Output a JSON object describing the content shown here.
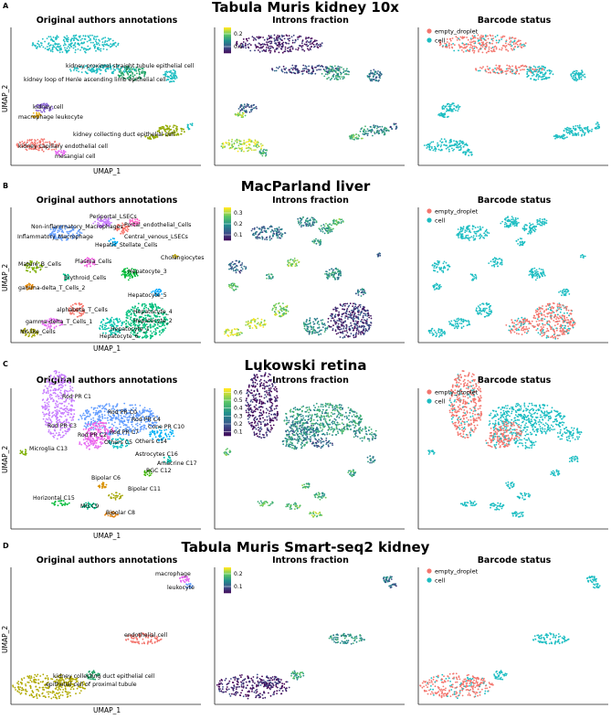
{
  "colors": {
    "empty_droplet": "#F3766E",
    "cell": "#1CBDC2",
    "viridis": [
      "#440154",
      "#3B528B",
      "#21908C",
      "#5DC863",
      "#FDE725"
    ]
  },
  "chart_data": [
    {
      "type": "scatter",
      "row_label": "A",
      "title": "Tabula Muris kidney 10x",
      "xlabel": "UMAP_1",
      "ylabel": "UMAP_2",
      "panels": {
        "annotations": {
          "title": "Original authors annotations",
          "labels": [
            "kidney proximal straight tubule epithelial cell",
            "kidney loop of Henle ascending limb epithelial cell",
            "kidney cell",
            "macrophage",
            "leukocyte",
            "kidney collecting duct epithelial cell",
            "kidney capillary endothelial cell",
            "mesangial cell"
          ]
        },
        "introns": {
          "title": "Introns fraction",
          "colorbar_ticks": [
            "0.2",
            "0.1"
          ],
          "colorbar_range": [
            0.05,
            0.25
          ]
        },
        "barcode": {
          "title": "Barcode status",
          "legend": [
            "empty_droplet",
            "cell"
          ]
        }
      }
    },
    {
      "type": "scatter",
      "row_label": "B",
      "title": "MacParland liver",
      "xlabel": "UMAP_1",
      "ylabel": "UMAP_2",
      "panels": {
        "annotations": {
          "title": "Original authors annotations",
          "labels": [
            "Periportal_LSECs",
            "Non-inflammatory_Macrophages",
            "Portal_endothelial_Cells",
            "Inflammatory_Macrophage",
            "Central_venous_LSECs",
            "Hepatic_Stellate_Cells",
            "Cholangiocytes",
            "Plasma_Cells",
            "Mature_B_Cells",
            "Hepatocyte_3",
            "Erythroid_Cells",
            "gamma-delta_T_Cells_2",
            "Hepatocyte_5",
            "alphabeta_T_Cells",
            "Hepatocyte_4",
            "gamma-delta_T_Cells_1",
            "Hepatocyte_2",
            "NK-like_Cells",
            "Hepatocyte_1",
            "Hepatocyte_6"
          ]
        },
        "introns": {
          "title": "Introns fraction",
          "colorbar_ticks": [
            "0.3",
            "0.2",
            "0.1"
          ],
          "colorbar_range": [
            0.05,
            0.35
          ]
        },
        "barcode": {
          "title": "Barcode status",
          "legend": [
            "empty_droplet",
            "cell"
          ]
        }
      }
    },
    {
      "type": "scatter",
      "row_label": "C",
      "title": "Lukowski retina",
      "xlabel": "UMAP_1",
      "ylabel": "UMAP_2",
      "panels": {
        "annotations": {
          "title": "Original authors annotations",
          "labels": [
            "Rod PR C1",
            "Rod PR C0",
            "Rod PR C4",
            "Rod PR C3",
            "Cone PR C10",
            "Rod PR C7",
            "Rod PR C2",
            "Others C5",
            "Others C14",
            "Microglia C13",
            "Astrocytes C16",
            "Amacrine C17",
            "RGC C12",
            "Bipolar C6",
            "Bipolar C11",
            "Horizontal C15",
            "MG C9",
            "Bipolar C8"
          ]
        },
        "introns": {
          "title": "Introns fraction",
          "colorbar_ticks": [
            "0.6",
            "0.5",
            "0.4",
            "0.3",
            "0.2",
            "0.1"
          ],
          "colorbar_range": [
            0.05,
            0.65
          ]
        },
        "barcode": {
          "title": "Barcode status",
          "legend": [
            "empty_droplet",
            "cell"
          ]
        }
      }
    },
    {
      "type": "scatter",
      "row_label": "D",
      "title": "Tabula Muris Smart-seq2 kidney",
      "xlabel": "UMAP_1",
      "ylabel": "UMAP_2",
      "panels": {
        "annotations": {
          "title": "Original authors annotations",
          "labels": [
            "macrophage",
            "leukocyte",
            "endothelial cell",
            "kidney collecting duct epithelial cell",
            "epithelial cell of proximal tubule"
          ]
        },
        "introns": {
          "title": "Introns fraction",
          "colorbar_ticks": [
            "0.2",
            "0.1"
          ],
          "colorbar_range": [
            0.05,
            0.25
          ]
        },
        "barcode": {
          "title": "Barcode status",
          "legend": [
            "empty_droplet",
            "cell"
          ]
        }
      }
    }
  ]
}
